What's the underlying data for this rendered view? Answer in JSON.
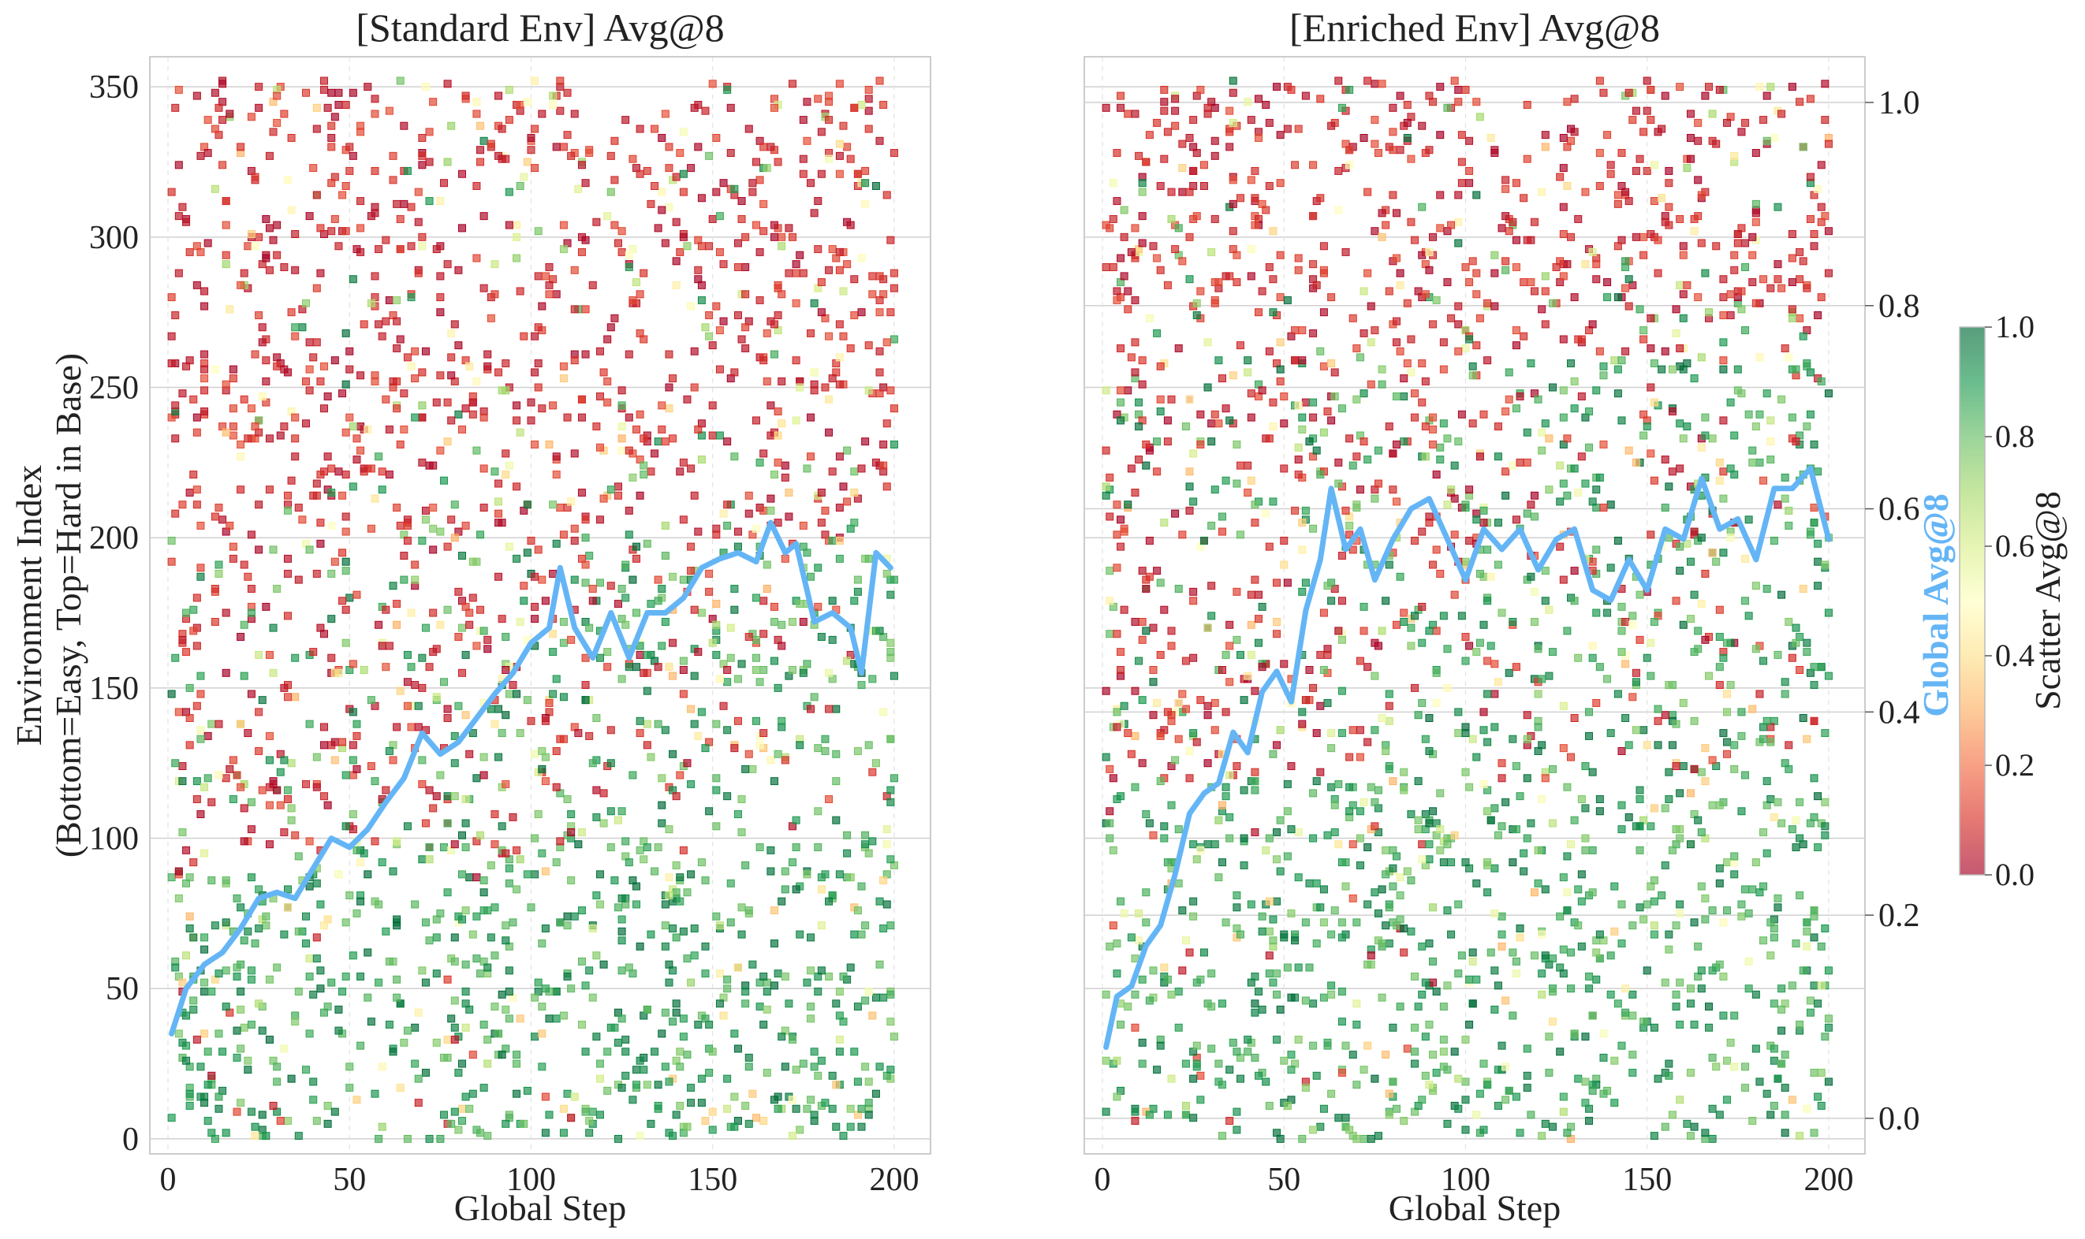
{
  "chart_data": [
    {
      "type": "scatter",
      "title": "[Standard Env] Avg@8",
      "xlabel": "Global Step",
      "ylabel_line1": "Environment Index",
      "ylabel_line2": "(Bottom=Easy, Top=Hard in Base)",
      "xlim": [
        -5,
        210
      ],
      "ylim": [
        -5,
        360
      ],
      "xticks": [
        0,
        50,
        100,
        150,
        200
      ],
      "yticks": [
        0,
        50,
        100,
        150,
        200,
        250,
        300,
        350
      ],
      "scatter_description": "Each square marker is one (step, environment) pair coloured by its Avg@8 score on the red-yellow-green colormap; lower environment indices are mostly green (easy), higher indices mostly red (hard).",
      "global_series": {
        "name": "Global Avg@8",
        "x": [
          1,
          5,
          10,
          15,
          20,
          25,
          30,
          35,
          40,
          45,
          50,
          55,
          60,
          65,
          70,
          75,
          80,
          85,
          90,
          95,
          100,
          105,
          108,
          112,
          117,
          122,
          127,
          132,
          137,
          142,
          147,
          152,
          157,
          162,
          166,
          170,
          173,
          178,
          183,
          188,
          191,
          195,
          199
        ],
        "y": [
          35,
          50,
          58,
          62,
          70,
          80,
          82,
          80,
          90,
          100,
          97,
          103,
          112,
          120,
          135,
          128,
          132,
          140,
          148,
          155,
          165,
          170,
          190,
          170,
          160,
          175,
          160,
          175,
          175,
          180,
          190,
          193,
          195,
          192,
          205,
          195,
          198,
          172,
          175,
          170,
          155,
          195,
          190
        ]
      }
    },
    {
      "type": "scatter",
      "title": "[Enriched Env] Avg@8",
      "xlabel": "Global Step",
      "xlim": [
        -5,
        210
      ],
      "ylim": [
        -5,
        360
      ],
      "xticks": [
        0,
        50,
        100,
        150,
        200
      ],
      "right_ylabel": "Global Avg@8",
      "right_ylim": [
        -0.035,
        1.045
      ],
      "right_yticks": [
        "0.0",
        "0.2",
        "0.4",
        "0.6",
        "0.8",
        "1.0"
      ],
      "scatter_description": "Same layout as the left panel for the enriched environment set; red markers dominate the upper band, a mixture of colours appears in the middle band.",
      "global_series": {
        "name": "Global Avg@8",
        "x": [
          1,
          4,
          8,
          12,
          16,
          20,
          24,
          28,
          32,
          36,
          40,
          44,
          48,
          52,
          56,
          60,
          63,
          67,
          71,
          75,
          80,
          85,
          90,
          95,
          100,
          105,
          110,
          115,
          120,
          125,
          130,
          135,
          140,
          145,
          150,
          155,
          160,
          165,
          170,
          175,
          180,
          185,
          190,
          195,
          200
        ],
        "y": [
          0.07,
          0.12,
          0.13,
          0.17,
          0.19,
          0.24,
          0.3,
          0.32,
          0.33,
          0.38,
          0.36,
          0.42,
          0.44,
          0.41,
          0.5,
          0.55,
          0.62,
          0.56,
          0.58,
          0.53,
          0.57,
          0.6,
          0.61,
          0.57,
          0.53,
          0.58,
          0.56,
          0.58,
          0.54,
          0.57,
          0.58,
          0.52,
          0.51,
          0.55,
          0.52,
          0.58,
          0.57,
          0.63,
          0.58,
          0.59,
          0.55,
          0.62,
          0.62,
          0.64,
          0.57
        ]
      }
    }
  ],
  "colorbar": {
    "label": "Scatter Avg@8",
    "min": 0.0,
    "max": 1.0,
    "ticks": [
      "0.0",
      "0.2",
      "0.4",
      "0.6",
      "0.8",
      "1.0"
    ]
  },
  "colors": {
    "line": "#64b5f6",
    "right_axis_label": "#64b5f6",
    "grid": "#d0d0d0",
    "frame": "#cccccc",
    "cmap": [
      "#a50026",
      "#d73027",
      "#f46d43",
      "#fdae61",
      "#fee08b",
      "#ffffbf",
      "#d9ef8b",
      "#a6d96a",
      "#66bd63",
      "#1a9850",
      "#006837"
    ]
  }
}
